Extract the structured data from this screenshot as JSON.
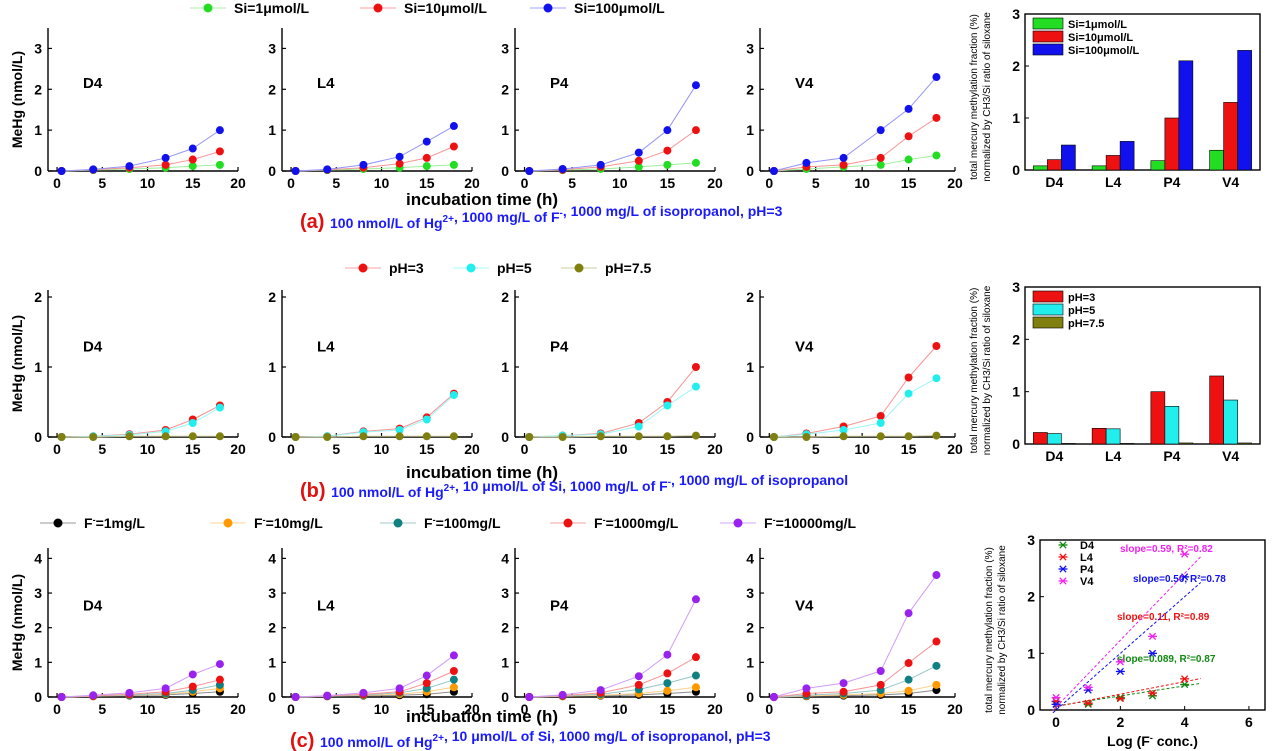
{
  "figure": {
    "rows": [
      {
        "caption": {
          "letter": "(a)",
          "parts": [
            {
              "t": "100 nmol/L of Hg"
            },
            {
              "t": "2+",
              "sup": true
            },
            {
              "t": ", 1000 mg/L of F"
            },
            {
              "t": "-",
              "sup": true
            },
            {
              "t": ", 1000 mg/L of isopropanol, pH=3"
            }
          ]
        },
        "legend": [
          {
            "label": "Si=1μmol/L",
            "color": "#22dd22"
          },
          {
            "label": "Si=10μmol/L",
            "color": "#ee1111"
          },
          {
            "label": "Si=100μmol/L",
            "color": "#1111ee"
          }
        ],
        "ylabel": "MeHg (nmol/L)",
        "xlabel": "incubation time (h)",
        "ymax": 3.5,
        "yticks": [
          "0",
          "1",
          "2",
          "3"
        ],
        "xticks": [
          "0",
          "5",
          "10",
          "15",
          "20"
        ]
      },
      {
        "caption": {
          "letter": "(b)",
          "parts": [
            {
              "t": "100 nmol/L of Hg"
            },
            {
              "t": "2+",
              "sup": true
            },
            {
              "t": ", 10 μmol/L of Si, 1000 mg/L of F"
            },
            {
              "t": "-",
              "sup": true
            },
            {
              "t": ", 1000 mg/L of isopropanol"
            }
          ]
        },
        "legend": [
          {
            "label": "pH=3",
            "color": "#ee1111"
          },
          {
            "label": "pH=5",
            "color": "#22eeee"
          },
          {
            "label": "pH=7.5",
            "color": "#808010"
          }
        ],
        "ylabel": "MeHg (nmol/L)",
        "xlabel": "incubation time (h)",
        "ymax": 2.1,
        "yticks": [
          "0",
          "1",
          "2"
        ],
        "xticks": [
          "0",
          "5",
          "10",
          "15",
          "20"
        ]
      },
      {
        "caption": {
          "letter": "(c)",
          "parts": [
            {
              "t": "100 nmol/L of Hg"
            },
            {
              "t": "2+",
              "sup": true
            },
            {
              "t": ", 10 μmol/L of Si,  1000 mg/L of isopropanol, pH=3"
            }
          ]
        },
        "legend": [
          {
            "label": "F",
            "sup": "-",
            "rest": "=1mg/L",
            "color": "#000000"
          },
          {
            "label": "F",
            "sup": "-",
            "rest": "=10mg/L",
            "color": "#ff9900"
          },
          {
            "label": "F",
            "sup": "-",
            "rest": "=100mg/L",
            "color": "#118080"
          },
          {
            "label": "F",
            "sup": "-",
            "rest": "=1000mg/L",
            "color": "#ee1111"
          },
          {
            "label": "F",
            "sup": "-",
            "rest": "=10000mg/L",
            "color": "#9922ee"
          }
        ],
        "ylabel": "MeHg (nmol/L)",
        "xlabel": "incubation time (h)",
        "ymax": 4.3,
        "yticks": [
          "0",
          "1",
          "2",
          "3",
          "4"
        ],
        "xticks": [
          "0",
          "5",
          "10",
          "15",
          "20"
        ]
      }
    ],
    "side_ylabel_line1": "total mercury methylation fraction (%)",
    "side_ylabel_line2": "normalized by CH3/Si ratio of siloxane",
    "scatter_xlabel": "Log (F",
    "scatter_xlabel_sup": "-",
    "scatter_xlabel_end": " conc.)"
  },
  "chart_data": [
    {
      "type": "line",
      "panel": "a",
      "label": "D4",
      "xlim": [
        -1,
        20
      ],
      "ylim": [
        0,
        3.5
      ],
      "x": [
        0.5,
        4,
        8,
        12,
        15,
        18
      ],
      "series": [
        {
          "name": "Si=1μmol/L",
          "values": [
            0,
            0.02,
            0.05,
            0.08,
            0.12,
            0.15
          ]
        },
        {
          "name": "Si=10μmol/L",
          "values": [
            0,
            0.03,
            0.08,
            0.15,
            0.28,
            0.48
          ]
        },
        {
          "name": "Si=100μmol/L",
          "values": [
            0,
            0.04,
            0.12,
            0.32,
            0.55,
            1.0
          ]
        }
      ]
    },
    {
      "type": "line",
      "panel": "a",
      "label": "L4",
      "xlim": [
        -1,
        20
      ],
      "ylim": [
        0,
        3.5
      ],
      "x": [
        0.5,
        4,
        8,
        12,
        15,
        18
      ],
      "series": [
        {
          "name": "Si=1μmol/L",
          "values": [
            0,
            0.02,
            0.05,
            0.08,
            0.12,
            0.15
          ]
        },
        {
          "name": "Si=10μmol/L",
          "values": [
            0,
            0.03,
            0.08,
            0.18,
            0.32,
            0.6
          ]
        },
        {
          "name": "Si=100μmol/L",
          "values": [
            0,
            0.04,
            0.15,
            0.35,
            0.72,
            1.1
          ]
        }
      ]
    },
    {
      "type": "line",
      "panel": "a",
      "label": "P4",
      "xlim": [
        -1,
        20
      ],
      "ylim": [
        0,
        3.5
      ],
      "x": [
        0.5,
        4,
        8,
        12,
        15,
        18
      ],
      "series": [
        {
          "name": "Si=1μmol/L",
          "values": [
            0,
            0.02,
            0.05,
            0.1,
            0.15,
            0.2
          ]
        },
        {
          "name": "Si=10μmol/L",
          "values": [
            0,
            0.03,
            0.1,
            0.25,
            0.5,
            1.0
          ]
        },
        {
          "name": "Si=100μmol/L",
          "values": [
            0,
            0.05,
            0.15,
            0.45,
            1.0,
            2.1
          ]
        }
      ]
    },
    {
      "type": "line",
      "panel": "a",
      "label": "V4",
      "xlim": [
        -1,
        20
      ],
      "ylim": [
        0,
        3.5
      ],
      "x": [
        0.5,
        4,
        8,
        12,
        15,
        18
      ],
      "series": [
        {
          "name": "Si=1μmol/L",
          "values": [
            0,
            0.05,
            0.1,
            0.15,
            0.28,
            0.38
          ]
        },
        {
          "name": "Si=10μmol/L",
          "values": [
            0,
            0.1,
            0.15,
            0.32,
            0.85,
            1.3
          ]
        },
        {
          "name": "Si=100μmol/L",
          "values": [
            0,
            0.2,
            0.32,
            1.0,
            1.52,
            2.3
          ]
        }
      ]
    },
    {
      "type": "bar",
      "panel": "a",
      "categories": [
        "D4",
        "L4",
        "P4",
        "V4"
      ],
      "ylim": [
        0,
        3
      ],
      "ylabel": "total mercury methylation fraction (%) normalized by CH3/Si ratio of siloxane",
      "series": [
        {
          "name": "Si=1μmol/L",
          "values": [
            0.08,
            0.08,
            0.18,
            0.38
          ]
        },
        {
          "name": "Si=10μmol/L",
          "values": [
            0.2,
            0.28,
            1.0,
            1.3
          ]
        },
        {
          "name": "Si=100μmol/L",
          "values": [
            0.48,
            0.55,
            2.1,
            2.3
          ]
        }
      ]
    },
    {
      "type": "line",
      "panel": "b",
      "label": "D4",
      "xlim": [
        -1,
        20
      ],
      "ylim": [
        0,
        2.1
      ],
      "x": [
        0.5,
        4,
        8,
        12,
        15,
        18
      ],
      "series": [
        {
          "name": "pH=3",
          "values": [
            0,
            0.01,
            0.04,
            0.1,
            0.25,
            0.45
          ]
        },
        {
          "name": "pH=5",
          "values": [
            0,
            0.01,
            0.03,
            0.08,
            0.2,
            0.42
          ]
        },
        {
          "name": "pH=7.5",
          "values": [
            0,
            0,
            0.01,
            0.01,
            0.01,
            0.01
          ]
        }
      ]
    },
    {
      "type": "line",
      "panel": "b",
      "label": "L4",
      "xlim": [
        -1,
        20
      ],
      "ylim": [
        0,
        2.1
      ],
      "x": [
        0.5,
        4,
        8,
        12,
        15,
        18
      ],
      "series": [
        {
          "name": "pH=3",
          "values": [
            0,
            0.01,
            0.08,
            0.12,
            0.28,
            0.62
          ]
        },
        {
          "name": "pH=5",
          "values": [
            0,
            0.01,
            0.07,
            0.1,
            0.25,
            0.6
          ]
        },
        {
          "name": "pH=7.5",
          "values": [
            0,
            0,
            0.01,
            0.01,
            0.01,
            0.01
          ]
        }
      ]
    },
    {
      "type": "line",
      "panel": "b",
      "label": "P4",
      "xlim": [
        -1,
        20
      ],
      "ylim": [
        0,
        2.1
      ],
      "x": [
        0.5,
        4,
        8,
        12,
        15,
        18
      ],
      "series": [
        {
          "name": "pH=3",
          "values": [
            0,
            0.02,
            0.05,
            0.2,
            0.5,
            1.0
          ]
        },
        {
          "name": "pH=5",
          "values": [
            0,
            0.02,
            0.04,
            0.15,
            0.45,
            0.72
          ]
        },
        {
          "name": "pH=7.5",
          "values": [
            0,
            0,
            0.01,
            0.01,
            0.01,
            0.02
          ]
        }
      ]
    },
    {
      "type": "line",
      "panel": "b",
      "label": "V4",
      "xlim": [
        -1,
        20
      ],
      "ylim": [
        0,
        2.1
      ],
      "x": [
        0.5,
        4,
        8,
        12,
        15,
        18
      ],
      "series": [
        {
          "name": "pH=3",
          "values": [
            0,
            0.05,
            0.15,
            0.3,
            0.85,
            1.3
          ]
        },
        {
          "name": "pH=5",
          "values": [
            0,
            0.04,
            0.1,
            0.2,
            0.62,
            0.84
          ]
        },
        {
          "name": "pH=7.5",
          "values": [
            0,
            0,
            0.01,
            0.01,
            0.01,
            0.02
          ]
        }
      ]
    },
    {
      "type": "bar",
      "panel": "b",
      "categories": [
        "D4",
        "L4",
        "P4",
        "V4"
      ],
      "ylim": [
        0,
        3
      ],
      "ylabel": "total mercury methylation fraction (%) normalized by CH3/Si ratio of siloxane",
      "series": [
        {
          "name": "pH=3",
          "values": [
            0.22,
            0.3,
            1.0,
            1.3
          ]
        },
        {
          "name": "pH=5",
          "values": [
            0.2,
            0.29,
            0.72,
            0.84
          ]
        },
        {
          "name": "pH=7.5",
          "values": [
            0.01,
            0.01,
            0.02,
            0.02
          ]
        }
      ]
    },
    {
      "type": "line",
      "panel": "c",
      "label": "D4",
      "xlim": [
        -1,
        20
      ],
      "ylim": [
        0,
        4.3
      ],
      "x": [
        0.5,
        4,
        8,
        12,
        15,
        18
      ],
      "series": [
        {
          "name": "F-=1mg/L",
          "values": [
            0,
            0.02,
            0.04,
            0.06,
            0.1,
            0.15
          ]
        },
        {
          "name": "F-=10mg/L",
          "values": [
            0,
            0.02,
            0.05,
            0.08,
            0.15,
            0.25
          ]
        },
        {
          "name": "F-=100mg/L",
          "values": [
            0,
            0.03,
            0.06,
            0.1,
            0.2,
            0.35
          ]
        },
        {
          "name": "F-=1000mg/L",
          "values": [
            0,
            0.03,
            0.08,
            0.15,
            0.3,
            0.5
          ]
        },
        {
          "name": "F-=10000mg/L",
          "values": [
            0,
            0.05,
            0.12,
            0.25,
            0.65,
            0.95
          ]
        }
      ]
    },
    {
      "type": "line",
      "panel": "c",
      "label": "L4",
      "xlim": [
        -1,
        20
      ],
      "ylim": [
        0,
        4.3
      ],
      "x": [
        0.5,
        4,
        8,
        12,
        15,
        18
      ],
      "series": [
        {
          "name": "F-=1mg/L",
          "values": [
            0,
            0.02,
            0.04,
            0.05,
            0.08,
            0.15
          ]
        },
        {
          "name": "F-=10mg/L",
          "values": [
            0,
            0.02,
            0.05,
            0.08,
            0.15,
            0.28
          ]
        },
        {
          "name": "F-=100mg/L",
          "values": [
            0,
            0.02,
            0.06,
            0.12,
            0.25,
            0.5
          ]
        },
        {
          "name": "F-=1000mg/L",
          "values": [
            0,
            0.03,
            0.08,
            0.15,
            0.4,
            0.75
          ]
        },
        {
          "name": "F-=10000mg/L",
          "values": [
            0,
            0.04,
            0.12,
            0.25,
            0.62,
            1.2
          ]
        }
      ]
    },
    {
      "type": "line",
      "panel": "c",
      "label": "P4",
      "xlim": [
        -1,
        20
      ],
      "ylim": [
        0,
        4.3
      ],
      "x": [
        0.5,
        4,
        8,
        12,
        15,
        18
      ],
      "series": [
        {
          "name": "F-=1mg/L",
          "values": [
            0,
            0.02,
            0.04,
            0.06,
            0.1,
            0.15
          ]
        },
        {
          "name": "F-=10mg/L",
          "values": [
            0,
            0.02,
            0.05,
            0.1,
            0.18,
            0.28
          ]
        },
        {
          "name": "F-=100mg/L",
          "values": [
            0,
            0.03,
            0.08,
            0.22,
            0.4,
            0.62
          ]
        },
        {
          "name": "F-=1000mg/L",
          "values": [
            0,
            0.04,
            0.12,
            0.35,
            0.68,
            1.15
          ]
        },
        {
          "name": "F-=10000mg/L",
          "values": [
            0,
            0.06,
            0.2,
            0.6,
            1.22,
            2.82
          ]
        }
      ]
    },
    {
      "type": "line",
      "panel": "c",
      "label": "V4",
      "xlim": [
        -1,
        20
      ],
      "ylim": [
        0,
        4.3
      ],
      "x": [
        0.5,
        4,
        8,
        12,
        15,
        18
      ],
      "series": [
        {
          "name": "F-=1mg/L",
          "values": [
            0,
            0.02,
            0.04,
            0.06,
            0.1,
            0.2
          ]
        },
        {
          "name": "F-=10mg/L",
          "values": [
            0,
            0.03,
            0.06,
            0.1,
            0.18,
            0.35
          ]
        },
        {
          "name": "F-=100mg/L",
          "values": [
            0,
            0.05,
            0.1,
            0.2,
            0.5,
            0.9
          ]
        },
        {
          "name": "F-=1000mg/L",
          "values": [
            0,
            0.1,
            0.15,
            0.35,
            0.98,
            1.6
          ]
        },
        {
          "name": "F-=10000mg/L",
          "values": [
            0,
            0.25,
            0.4,
            0.75,
            2.42,
            3.52
          ]
        }
      ]
    },
    {
      "type": "scatter",
      "panel": "c",
      "xlabel": "Log (F- conc.)",
      "ylabel": "total mercury methylation fraction (%) normalized by CH3/Si ratio of siloxane",
      "xlim": [
        -0.5,
        6.5
      ],
      "ylim": [
        0,
        3
      ],
      "series": [
        {
          "name": "D4",
          "color": "#118811",
          "x": [
            0,
            1,
            2,
            3,
            4
          ],
          "y": [
            0.15,
            0.1,
            0.22,
            0.25,
            0.45
          ],
          "fit": {
            "slope": 0.089,
            "intercept": 0.07
          },
          "annotation": "slope=0.089, R²=0.87"
        },
        {
          "name": "L4",
          "color": "#ee1111",
          "x": [
            0,
            1,
            2,
            3,
            4
          ],
          "y": [
            0.15,
            0.12,
            0.2,
            0.3,
            0.55
          ],
          "fit": {
            "slope": 0.11,
            "intercept": 0.06
          },
          "annotation": "slope=0.11, R²=0.89"
        },
        {
          "name": "P4",
          "color": "#1111ee",
          "x": [
            0,
            1,
            2,
            3,
            4
          ],
          "y": [
            0.1,
            0.35,
            0.68,
            1.0,
            2.35
          ],
          "fit": {
            "slope": 0.5,
            "intercept": 0.0
          },
          "annotation": "slope=0.50, R²=0.78"
        },
        {
          "name": "V4",
          "color": "#ee22ee",
          "x": [
            0,
            1,
            2,
            3,
            4
          ],
          "y": [
            0.22,
            0.4,
            0.85,
            1.3,
            2.75
          ],
          "fit": {
            "slope": 0.59,
            "intercept": 0.05
          },
          "annotation": "slope=0.59, R²=0.82"
        }
      ]
    }
  ]
}
